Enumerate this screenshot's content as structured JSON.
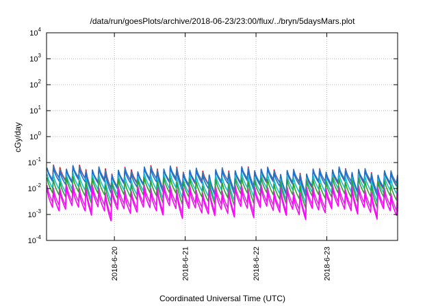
{
  "chart_data": {
    "type": "line",
    "title": "/data/run/goesPlots/archive/2018-06-23/23:00/flux/../bryn/5daysMars.plot",
    "xlabel": "Coordinated Universal Time (UTC)",
    "ylabel": "cGy/day",
    "x_scale": "time",
    "y_scale": "log",
    "ylim": [
      0.0001,
      10000
    ],
    "xlim": [
      "2018-06-19 01:00",
      "2018-06-24 00:00"
    ],
    "grid": true,
    "y_ticks": [
      {
        "value": 0.0001,
        "base": "10",
        "exp": "-4"
      },
      {
        "value": 0.001,
        "base": "10",
        "exp": "-3"
      },
      {
        "value": 0.01,
        "base": "10",
        "exp": "-2"
      },
      {
        "value": 0.1,
        "base": "10",
        "exp": "-1"
      },
      {
        "value": 1,
        "base": "10",
        "exp": "0"
      },
      {
        "value": 10,
        "base": "10",
        "exp": "1"
      },
      {
        "value": 100,
        "base": "10",
        "exp": "2"
      },
      {
        "value": 1000,
        "base": "10",
        "exp": "3"
      },
      {
        "value": 10000,
        "base": "10",
        "exp": "4"
      }
    ],
    "x_ticks": [
      {
        "value": "2018-06-20 00:00",
        "label": "2018-6-20"
      },
      {
        "value": "2018-06-21 00:00",
        "label": "2018-6-21"
      },
      {
        "value": "2018-06-22 00:00",
        "label": "2018-6-22"
      },
      {
        "value": "2018-06-23 00:00",
        "label": "2018-6-23"
      }
    ],
    "sawtooth_period_hours": 2.2,
    "series": [
      {
        "color": "#e41a1c",
        "peak_start": 0.062,
        "peak_end": 0.045,
        "decay": 0.32,
        "drops": [
          [
            0.9,
            0.33
          ]
        ]
      },
      {
        "color": "#377eb8",
        "peak_start": 0.058,
        "peak_end": 0.047,
        "decay": 0.35,
        "drops": [
          [
            0.9,
            0.35
          ]
        ]
      },
      {
        "color": "#1b6fd0",
        "peak_start": 0.05,
        "peak_end": 0.042,
        "decay": 0.32,
        "drops": [
          [
            0.9,
            0.34
          ]
        ]
      },
      {
        "color": "#17becf",
        "peak_start": 0.03,
        "peak_end": 0.028,
        "decay": 0.28,
        "drops": [
          [
            0.95,
            0.33
          ]
        ]
      },
      {
        "color": "#2ca02c",
        "peak_start": 0.021,
        "peak_end": 0.019,
        "decay": 0.26,
        "drops": [
          [
            0.95,
            0.34
          ]
        ]
      },
      {
        "color": "#d62fd6",
        "peak_start": 0.011,
        "peak_end": 0.01,
        "decay": 0.22,
        "drops": [
          [
            0.95,
            0.32
          ]
        ]
      },
      {
        "color": "#ff00ff",
        "peak_start": 0.008,
        "peak_end": 0.0075,
        "decay": 0.2,
        "drops": [
          [
            0.95,
            0.3
          ]
        ]
      }
    ]
  }
}
